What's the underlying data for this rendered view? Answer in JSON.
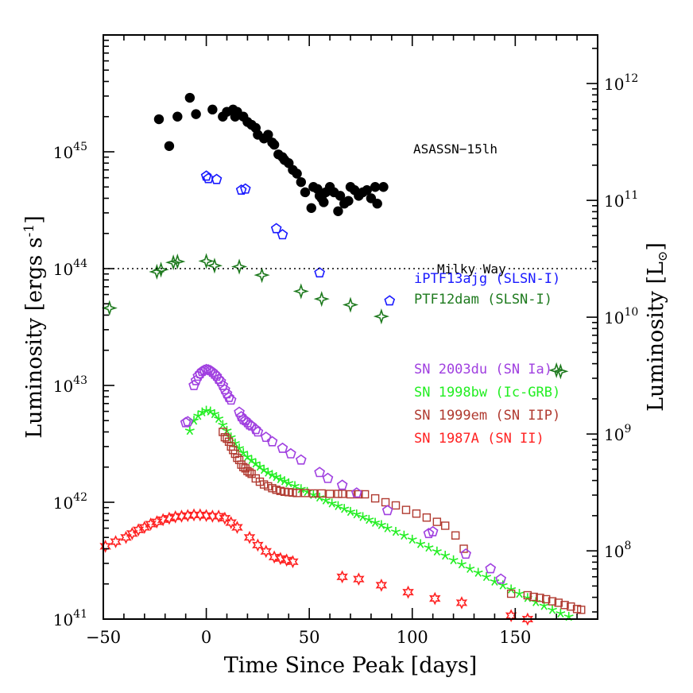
{
  "chart_data": {
    "type": "scatter",
    "title": "",
    "xlabel": "Time Since Peak [days]",
    "ylabel": "Luminosity [ergs s",
    "ylabel_sup": "-1",
    "ylabel_end": "]",
    "y2label": "Luminosity [L",
    "y2label_sub": "⊙",
    "y2label_end": "]",
    "xlim": [
      -50,
      190
    ],
    "ylim": [
      1e+41,
      1e+46
    ],
    "yscale": "log",
    "y2lim_Lsun": [
      1e+41,
      1e+46
    ],
    "grid": false,
    "x_ticks": [
      -50,
      0,
      50,
      100,
      150
    ],
    "x_tick_labels": [
      "−50",
      "0",
      "50",
      "100",
      "150"
    ],
    "y_tick_labels": [
      {
        "base": "10",
        "exp": "41"
      },
      {
        "base": "10",
        "exp": "42"
      },
      {
        "base": "10",
        "exp": "43"
      },
      {
        "base": "10",
        "exp": "44"
      },
      {
        "base": "10",
        "exp": "45"
      }
    ],
    "y_tick_values": [
      1e+41,
      1e+42,
      1e+43,
      1e+44,
      1e+45
    ],
    "y2_tick_labels": [
      {
        "base": "10",
        "exp": "8"
      },
      {
        "base": "10",
        "exp": "9"
      },
      {
        "base": "10",
        "exp": "10"
      },
      {
        "base": "10",
        "exp": "11"
      },
      {
        "base": "10",
        "exp": "12"
      }
    ],
    "y2_tick_values_Lsun": [
      100000000.0,
      1000000000.0,
      10000000000.0,
      100000000000.0,
      1000000000000.0
    ],
    "reference_line": {
      "label": "Milky Way",
      "y": 1e+44
    },
    "annotations": [
      {
        "text": "ASASSN−15lh"
      }
    ],
    "legend_entries": [
      {
        "text": "iPTF13ajg (SLSN-I)",
        "color": "#1a1aff"
      },
      {
        "text": "PTF12dam (SLSN-I)",
        "color": "#1e7a1e"
      },
      {
        "text": "SN 2003du (SN Ia)",
        "color": "#a040e0"
      },
      {
        "text": "SN 1998bw (Ic-GRB)",
        "color": "#22ee22"
      },
      {
        "text": "SN 1999em (SN IIP)",
        "color": "#b03a30"
      },
      {
        "text": "SN 1987A (SN II)",
        "color": "#ff2222"
      }
    ],
    "series": [
      {
        "name": "ASASSN−15lh",
        "marker": "filled-circle",
        "color": "#000000",
        "x": [
          -23,
          -18,
          -14,
          -8,
          -5,
          3,
          8,
          10,
          13,
          14,
          15,
          18,
          20,
          22,
          24,
          25,
          28,
          30,
          32,
          33,
          35,
          37,
          38,
          40,
          42,
          44,
          46,
          48,
          51,
          52,
          54,
          55,
          56,
          57,
          58,
          60,
          62,
          64,
          65,
          67,
          69,
          70,
          72,
          74,
          76,
          78,
          80,
          82,
          83,
          86
        ],
        "y": [
          1.9e+45,
          1.12e+45,
          2e+45,
          2.9e+45,
          2.1e+45,
          2.3e+45,
          2e+45,
          2.2e+45,
          2.3e+45,
          2e+45,
          2.2e+45,
          2e+45,
          1.8e+45,
          1.7e+45,
          1.6e+45,
          1.4e+45,
          1.3e+45,
          1.4e+45,
          1.2e+45,
          1.15e+45,
          9.5e+44,
          9e+44,
          8.5e+44,
          8e+44,
          7e+44,
          6.5e+44,
          5.5e+44,
          4.5e+44,
          3.3e+44,
          5e+44,
          4.8e+44,
          4.2e+44,
          4e+44,
          3.7e+44,
          4.5e+44,
          5e+44,
          4.5e+44,
          3.1e+44,
          4.2e+44,
          3.6e+44,
          3.8e+44,
          5e+44,
          4.7e+44,
          4.2e+44,
          4.5e+44,
          4.7e+44,
          4e+44,
          5e+44,
          3.6e+44,
          5e+44
        ]
      },
      {
        "name": "iPTF13ajg (SLSN-I)",
        "marker": "open-pentagon",
        "color": "#1a1aff",
        "x": [
          0,
          1,
          5,
          17,
          19,
          34,
          37,
          55,
          89
        ],
        "y": [
          6.2e+44,
          5.9e+44,
          5.8e+44,
          4.7e+44,
          4.8e+44,
          2.2e+44,
          1.95e+44,
          9.2e+43,
          5.3e+43
        ]
      },
      {
        "name": "PTF12dam (SLSN-I)",
        "marker": "open-star4",
        "color": "#1e7a1e",
        "x": [
          -47,
          -24,
          -22,
          -16,
          -14,
          0,
          4,
          16,
          27,
          46,
          56,
          70,
          85,
          170,
          172
        ],
        "y": [
          4.6e+43,
          9.4e+43,
          9.8e+43,
          1.13e+44,
          1.15e+44,
          1.16e+44,
          1.06e+44,
          1.04e+44,
          8.8e+43,
          6.4e+43,
          5.5e+43,
          4.9e+43,
          3.9e+43,
          1.35e+43,
          1.32e+43
        ]
      },
      {
        "name": "SN 2003du (SN Ia)",
        "marker": "open-pentagon",
        "color": "#a040e0",
        "x": [
          -10,
          -9,
          -6,
          -5,
          -4,
          -3,
          -2,
          -1,
          0,
          1,
          2,
          3,
          4,
          5,
          6,
          7,
          8,
          9,
          10,
          11,
          12,
          16,
          17,
          18,
          19,
          20,
          21,
          22,
          24,
          25,
          29,
          32,
          37,
          41,
          46,
          55,
          59,
          66,
          73,
          88,
          108,
          110,
          126,
          138,
          143
        ],
        "y": [
          4.8e+42,
          4.9e+42,
          1e+43,
          1.1e+43,
          1.2e+43,
          1.26e+43,
          1.32e+43,
          1.35e+43,
          1.37e+43,
          1.36e+43,
          1.34e+43,
          1.3e+43,
          1.25e+43,
          1.2e+43,
          1.13e+43,
          1.08e+43,
          1e+43,
          9.2e+42,
          8.5e+42,
          7.9e+42,
          7.5e+42,
          5.9e+42,
          5.4e+42,
          5.1e+42,
          5e+42,
          4.8e+42,
          4.6e+42,
          4.5e+42,
          4.2e+42,
          4e+42,
          3.6e+42,
          3.3e+42,
          2.9e+42,
          2.6e+42,
          2.3e+42,
          1.8e+42,
          1.6e+42,
          1.4e+42,
          1.2e+42,
          8.5e+41,
          5.4e+41,
          5.6e+41,
          3.6e+41,
          2.7e+41,
          2.2e+41
        ]
      },
      {
        "name": "SN 1998bw (Ic-GRB)",
        "marker": "asterisk",
        "color": "#22ee22",
        "x": [
          -8,
          -6,
          -4,
          -2,
          0,
          2,
          4,
          6,
          8,
          10,
          12,
          14,
          16,
          18,
          20,
          22,
          24,
          26,
          28,
          30,
          32,
          34,
          36,
          38,
          40,
          43,
          46,
          49,
          52,
          55,
          58,
          61,
          64,
          67,
          70,
          73,
          76,
          79,
          82,
          85,
          88,
          92,
          96,
          100,
          104,
          108,
          112,
          116,
          120,
          124,
          128,
          132,
          136,
          140,
          144,
          148,
          152,
          156,
          160,
          164,
          168,
          172,
          176,
          180,
          184,
          188
        ],
        "y": [
          4.1e+42,
          5e+42,
          5.5e+42,
          5.9e+42,
          6.1e+42,
          6e+42,
          5.7e+42,
          5.2e+42,
          4.6e+42,
          4.1e+42,
          3.6e+42,
          3.2e+42,
          2.9e+42,
          2.65e+42,
          2.45e+42,
          2.3e+42,
          2.15e+42,
          2.02e+42,
          1.9e+42,
          1.8e+42,
          1.72e+42,
          1.65e+42,
          1.58e+42,
          1.52e+42,
          1.46e+42,
          1.38e+42,
          1.3e+42,
          1.23e+42,
          1.16e+42,
          1.1e+42,
          1.04e+42,
          9.8e+41,
          9.3e+41,
          8.8e+41,
          8.3e+41,
          7.9e+41,
          7.5e+41,
          7.1e+41,
          6.7e+41,
          6.4e+41,
          6e+41,
          5.6e+41,
          5.2e+41,
          4.8e+41,
          4.4e+41,
          4.1e+41,
          3.8e+41,
          3.5e+41,
          3.2e+41,
          2.95e+41,
          2.7e+41,
          2.5e+41,
          2.3e+41,
          2.1e+41,
          1.95e+41,
          1.8e+41,
          1.65e+41,
          1.52e+41,
          1.4e+41,
          1.3e+41,
          1.2e+41,
          1.12e+41,
          1.05e+41,
          9.8e+40,
          9.2e+40,
          8.8e+40
        ]
      },
      {
        "name": "SN 1999em (SN IIP)",
        "marker": "open-square",
        "color": "#b03a30",
        "x": [
          8,
          9,
          10,
          11,
          12,
          13,
          14,
          15,
          16,
          17,
          18,
          19,
          20,
          21,
          22,
          24,
          26,
          28,
          30,
          32,
          34,
          36,
          38,
          40,
          42,
          44,
          48,
          52,
          56,
          60,
          64,
          66,
          70,
          74,
          77,
          82,
          87,
          92,
          97,
          102,
          107,
          112,
          116,
          121,
          125,
          148,
          156,
          159,
          162,
          165,
          168,
          171,
          174,
          177,
          180,
          182
        ],
        "y": [
          4e+42,
          3.6e+42,
          3.5e+42,
          3.3e+42,
          3e+42,
          2.8e+42,
          2.6e+42,
          2.4e+42,
          2.3e+42,
          2.1e+42,
          2e+42,
          1.95e+42,
          1.85e+42,
          1.8e+42,
          1.75e+42,
          1.6e+42,
          1.5e+42,
          1.42e+42,
          1.37e+42,
          1.32e+42,
          1.28e+42,
          1.25e+42,
          1.23e+42,
          1.22e+42,
          1.21e+42,
          1.2e+42,
          1.2e+42,
          1.19e+42,
          1.19e+42,
          1.18e+42,
          1.18e+42,
          1.18e+42,
          1.17e+42,
          1.17e+42,
          1.17e+42,
          1.08e+42,
          1e+42,
          9.4e+41,
          8.6e+41,
          8e+41,
          7.4e+41,
          6.8e+41,
          6.3e+41,
          5.2e+41,
          4e+41,
          1.65e+41,
          1.6e+41,
          1.55e+41,
          1.52e+41,
          1.48e+41,
          1.42e+41,
          1.38e+41,
          1.32e+41,
          1.28e+41,
          1.22e+41,
          1.2e+41
        ]
      },
      {
        "name": "SN 1987A (SN II)",
        "marker": "open-star6",
        "color": "#ff2222",
        "x": [
          -49,
          -44,
          -39,
          -36,
          -33,
          -30,
          -27,
          -24,
          -21,
          -18,
          -15,
          -12,
          -9,
          -6,
          -3,
          0,
          3,
          6,
          9,
          12,
          15,
          21,
          25,
          29,
          33,
          36,
          39,
          42,
          66,
          74,
          85,
          98,
          111,
          124,
          148,
          156,
          172
        ],
        "y": [
          4.2e+41,
          4.6e+41,
          5e+41,
          5.4e+41,
          5.8e+41,
          6.1e+41,
          6.5e+41,
          6.8e+41,
          7.1e+41,
          7.3e+41,
          7.5e+41,
          7.6e+41,
          7.7e+41,
          7.8e+41,
          7.8e+41,
          7.7e+41,
          7.6e+41,
          7.6e+41,
          7.3e+41,
          6.7e+41,
          6.1e+41,
          5e+41,
          4.3e+41,
          3.8e+41,
          3.4e+41,
          3.3e+41,
          3.2e+41,
          3.1e+41,
          2.3e+41,
          2.2e+41,
          1.95e+41,
          1.7e+41,
          1.5e+41,
          1.38e+41,
          1.07e+41,
          1e+41,
          8.8e+40
        ]
      }
    ]
  }
}
